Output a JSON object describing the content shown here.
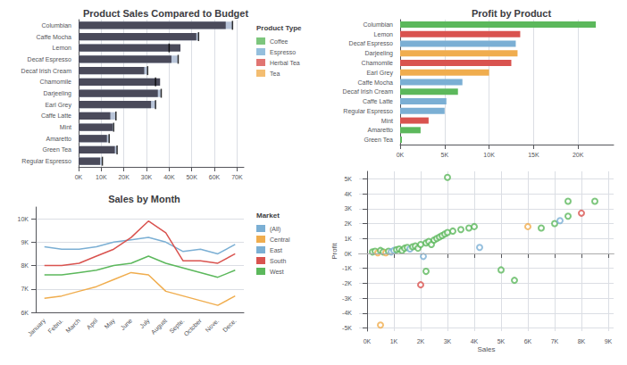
{
  "chart_data": [
    {
      "type": "bar",
      "orientation": "horizontal",
      "title": "Product Sales Compared to Budget",
      "categories": [
        "Columbian",
        "Caffe Mocha",
        "Lemon",
        "Decaf Espresso",
        "Decaf Irish Cream",
        "Chamomile",
        "Darjeeling",
        "Earl Grey",
        "Caffe Latte",
        "Mint",
        "Amaretto",
        "Green Tea",
        "Regular Espresso"
      ],
      "series": [
        {
          "color": "#b8c4d8",
          "values": [
            68000,
            53000,
            40000,
            44000,
            30500,
            34000,
            36500,
            34000,
            16500,
            15500,
            13500,
            17000,
            10500
          ]
        },
        {
          "color": "#4a4a5a",
          "values": [
            65000,
            52000,
            45000,
            41000,
            29000,
            36000,
            35000,
            32000,
            14000,
            15000,
            12500,
            16000,
            9500
          ]
        }
      ],
      "xlim": [
        0,
        73000
      ],
      "xticks": [
        {
          "value": 0,
          "label": "0K"
        },
        {
          "value": 10000,
          "label": "10K"
        },
        {
          "value": 20000,
          "label": "20K"
        },
        {
          "value": 30000,
          "label": "30K"
        },
        {
          "value": 40000,
          "label": "40K"
        },
        {
          "value": 50000,
          "label": "50K"
        },
        {
          "value": 60000,
          "label": "60K"
        },
        {
          "value": 70000,
          "label": "70K"
        }
      ],
      "grid": true,
      "legend": "right",
      "legend_title": "Product Type",
      "legend_items": [
        {
          "name": "Coffee",
          "color": "#5cb85c"
        },
        {
          "name": "Espresso",
          "color": "#7bafd4"
        },
        {
          "name": "Herbal Tea",
          "color": "#d9534f"
        },
        {
          "name": "Tea",
          "color": "#f0ad4e"
        }
      ]
    },
    {
      "type": "line",
      "title": "Sales by Month",
      "categories": [
        "January",
        "Febru.",
        "March",
        "April",
        "May",
        "June",
        "July",
        "August",
        "Septe.",
        "October",
        "Nove.",
        "Dece."
      ],
      "series": [
        {
          "name": "(All)",
          "color": "#7bafd4",
          "values": [
            null,
            null,
            null,
            null,
            null,
            null,
            null,
            null,
            null,
            null,
            null,
            null
          ]
        },
        {
          "name": "Central",
          "color": "#f0ad4e",
          "values": [
            6600,
            6700,
            6900,
            7100,
            7400,
            7700,
            7600,
            6900,
            6700,
            6500,
            6300,
            6700
          ]
        },
        {
          "name": "East",
          "color": "#7bafd4",
          "values": [
            8800,
            8700,
            8700,
            8800,
            9000,
            9100,
            9200,
            9000,
            8600,
            8700,
            8500,
            8900
          ]
        },
        {
          "name": "South",
          "color": "#d9534f",
          "values": [
            8000,
            8000,
            8100,
            8400,
            8700,
            9200,
            9900,
            9400,
            8200,
            8200,
            8100,
            8500
          ]
        },
        {
          "name": "West",
          "color": "#5cb85c",
          "values": [
            7600,
            7600,
            7700,
            7800,
            8000,
            8100,
            8400,
            8100,
            7900,
            7700,
            7500,
            7800
          ]
        }
      ],
      "ylim": [
        6000,
        10500
      ],
      "yticks": [
        {
          "value": 6000,
          "label": "6K"
        },
        {
          "value": 7000,
          "label": "7K"
        },
        {
          "value": 8000,
          "label": "8K"
        },
        {
          "value": 9000,
          "label": "9K"
        },
        {
          "value": 10000,
          "label": "10K"
        }
      ],
      "grid": true,
      "legend": "right",
      "legend_title": "Market"
    },
    {
      "type": "bar",
      "orientation": "horizontal",
      "title": "Profit by Product",
      "categories": [
        "Columbian",
        "Lemon",
        "Decaf Espresso",
        "Darjeeling",
        "Chamomile",
        "Earl Grey",
        "Caffe Mocha",
        "Decaf Irish Cream",
        "Caffe Latte",
        "Regular Espresso",
        "Mint",
        "Amaretto",
        "Green Tea"
      ],
      "values": [
        22000,
        13500,
        13000,
        13200,
        12500,
        10000,
        7000,
        6500,
        5200,
        5000,
        3200,
        2300,
        200
      ],
      "colors": [
        "#5cb85c",
        "#d9534f",
        "#7bafd4",
        "#f0ad4e",
        "#d9534f",
        "#f0ad4e",
        "#7bafd4",
        "#5cb85c",
        "#7bafd4",
        "#7bafd4",
        "#d9534f",
        "#5cb85c",
        "#5cb85c"
      ],
      "xlim": [
        0,
        24000
      ],
      "xticks": [
        {
          "value": 0,
          "label": "0K"
        },
        {
          "value": 5000,
          "label": "5K"
        },
        {
          "value": 10000,
          "label": "10K"
        },
        {
          "value": 15000,
          "label": "15K"
        },
        {
          "value": 20000,
          "label": "20K"
        }
      ],
      "grid": true
    },
    {
      "type": "scatter",
      "xlabel": "Sales",
      "ylabel": "Profit",
      "x": [
        200,
        300,
        400,
        500,
        600,
        700,
        800,
        900,
        1000,
        1100,
        1200,
        1300,
        1400,
        1500,
        1600,
        1700,
        1800,
        1900,
        2000,
        2100,
        2200,
        2300,
        2400,
        2500,
        2600,
        2700,
        2800,
        2900,
        3000,
        3200,
        3500,
        3800,
        4000,
        4200,
        5000,
        5500,
        6000,
        6500,
        7000,
        7200,
        7500,
        8000,
        8500,
        500,
        2000,
        2200,
        3000,
        7500
      ],
      "values": [
        100,
        150,
        50,
        200,
        100,
        50,
        150,
        100,
        200,
        250,
        300,
        200,
        350,
        400,
        300,
        450,
        500,
        350,
        600,
        -200,
        700,
        800,
        600,
        900,
        1000,
        1100,
        1200,
        1300,
        1400,
        1500,
        1600,
        1700,
        1800,
        400,
        -1100,
        -1800,
        1800,
        1700,
        2000,
        2200,
        2500,
        2700,
        3500,
        -4800,
        -2100,
        -1200,
        5100,
        3500
      ],
      "colors": [
        "#5cb85c",
        "#5cb85c",
        "#f0ad4e",
        "#5cb85c",
        "#5cb85c",
        "#f0ad4e",
        "#5cb85c",
        "#7bafd4",
        "#7bafd4",
        "#5cb85c",
        "#5cb85c",
        "#5cb85c",
        "#5cb85c",
        "#5cb85c",
        "#7bafd4",
        "#5cb85c",
        "#5cb85c",
        "#5cb85c",
        "#5cb85c",
        "#7bafd4",
        "#5cb85c",
        "#5cb85c",
        "#5cb85c",
        "#5cb85c",
        "#5cb85c",
        "#5cb85c",
        "#5cb85c",
        "#5cb85c",
        "#5cb85c",
        "#5cb85c",
        "#5cb85c",
        "#5cb85c",
        "#5cb85c",
        "#7bafd4",
        "#5cb85c",
        "#5cb85c",
        "#f0ad4e",
        "#5cb85c",
        "#5cb85c",
        "#7bafd4",
        "#5cb85c",
        "#d9534f",
        "#5cb85c",
        "#f0ad4e",
        "#d9534f",
        "#5cb85c",
        "#5cb85c",
        "#5cb85c"
      ],
      "xlim": [
        -300,
        9200
      ],
      "xticks": [
        {
          "value": 0,
          "label": "0K"
        },
        {
          "value": 1000,
          "label": "1K"
        },
        {
          "value": 2000,
          "label": "2K"
        },
        {
          "value": 3000,
          "label": "3K"
        },
        {
          "value": 4000,
          "label": "4K"
        },
        {
          "value": 5000,
          "label": "5K"
        },
        {
          "value": 6000,
          "label": "6K"
        },
        {
          "value": 7000,
          "label": "7K"
        },
        {
          "value": 8000,
          "label": "8K"
        },
        {
          "value": 9000,
          "label": "9K"
        }
      ],
      "ylim": [
        -5200,
        5500
      ],
      "yticks": [
        {
          "value": -5000,
          "label": "-5K"
        },
        {
          "value": -4000,
          "label": "-4K"
        },
        {
          "value": -3000,
          "label": "-3K"
        },
        {
          "value": -2000,
          "label": "-2K"
        },
        {
          "value": -1000,
          "label": "-1K"
        },
        {
          "value": 0,
          "label": "0K"
        },
        {
          "value": 1000,
          "label": "1K"
        },
        {
          "value": 2000,
          "label": "2K"
        },
        {
          "value": 3000,
          "label": "3K"
        },
        {
          "value": 4000,
          "label": "4K"
        },
        {
          "value": 5000,
          "label": "5K"
        }
      ],
      "grid": true,
      "hlines": [
        0
      ]
    }
  ]
}
